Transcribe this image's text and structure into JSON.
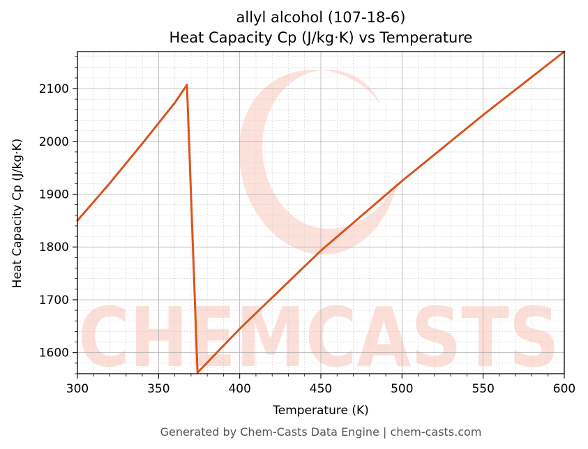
{
  "chart_data": {
    "type": "line",
    "title_line1": "allyl alcohol (107-18-6)",
    "title_line2": "Heat Capacity Cp (J/kg·K) vs Temperature",
    "xlabel": "Temperature (K)",
    "ylabel": "Heat Capacity Cp (J/kg·K)",
    "xlim": [
      300,
      600
    ],
    "ylim": [
      1560,
      2170
    ],
    "xticks": [
      300,
      350,
      400,
      450,
      500,
      550,
      600
    ],
    "yticks": [
      1600,
      1700,
      1800,
      1900,
      2000,
      2100
    ],
    "grid": true,
    "series": [
      {
        "color": "#d9541e",
        "x": [
          300,
          320,
          340,
          360,
          367.5,
          374,
          400,
          450,
          500,
          550,
          600
        ],
        "y": [
          1850,
          1921,
          1996,
          2073,
          2107,
          1562,
          1645,
          1793,
          1925,
          2050,
          2170
        ]
      }
    ]
  },
  "watermark": {
    "text": "CHEMCASTS",
    "color": "#fbd4cc"
  },
  "footer": "Generated by Chem-Casts Data Engine | chem-casts.com"
}
